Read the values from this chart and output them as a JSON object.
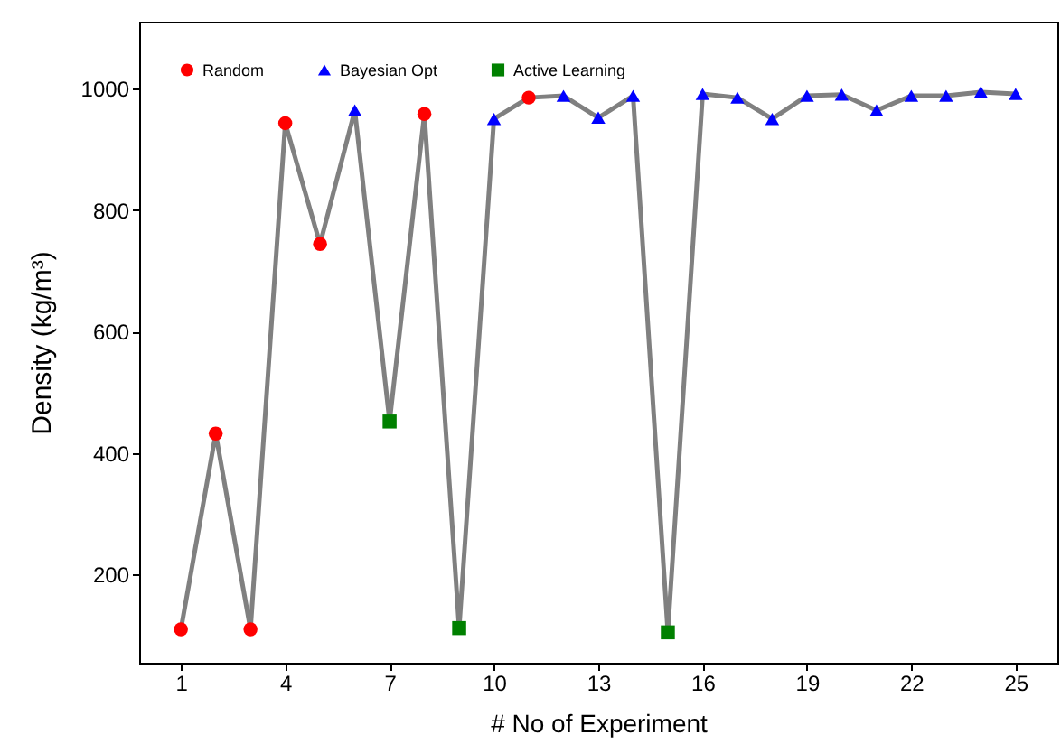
{
  "chart_data": {
    "type": "line",
    "xlabel": "# No of Experiment",
    "ylabel": "Density (kg/m³)",
    "xlim": [
      -0.2,
      26.2
    ],
    "ylim": [
      55,
      1110
    ],
    "xticks": [
      1,
      4,
      7,
      10,
      13,
      16,
      19,
      22,
      25
    ],
    "yticks": [
      200,
      400,
      600,
      800,
      1000
    ],
    "grid": false,
    "legend": "top left",
    "line_style": "solid",
    "series": [
      {
        "type": "line",
        "color": "#808080",
        "marker": "none",
        "x": [
          1,
          2,
          3,
          4,
          5,
          6,
          7,
          8,
          9,
          10,
          11,
          12,
          13,
          14,
          15,
          16,
          17,
          18,
          19,
          20,
          21,
          22,
          23,
          24,
          25
        ],
        "values": [
          110,
          432,
          110,
          943,
          744,
          964,
          452,
          958,
          112,
          950,
          985,
          988,
          952,
          988,
          105,
          991,
          985,
          950,
          988,
          990,
          964,
          988,
          988,
          994,
          991
        ]
      },
      {
        "type": "scatter",
        "name": "Random",
        "color": "#ff0000",
        "marker": "circle",
        "x": [
          1,
          2,
          3,
          4,
          5,
          8,
          11
        ],
        "values": [
          110,
          432,
          110,
          943,
          744,
          958,
          985
        ]
      },
      {
        "type": "scatter",
        "name": "Bayesian Opt",
        "color": "#0000ff",
        "marker": "triangle",
        "x": [
          6,
          10,
          12,
          13,
          14,
          16,
          17,
          18,
          19,
          20,
          21,
          22,
          23,
          24,
          25
        ],
        "values": [
          964,
          950,
          988,
          952,
          988,
          991,
          985,
          950,
          988,
          990,
          964,
          988,
          988,
          994,
          991
        ]
      },
      {
        "type": "scatter",
        "name": "Active Learning",
        "color": "#008000",
        "marker": "square",
        "x": [
          7,
          9,
          15
        ],
        "values": [
          452,
          112,
          105
        ]
      }
    ]
  }
}
